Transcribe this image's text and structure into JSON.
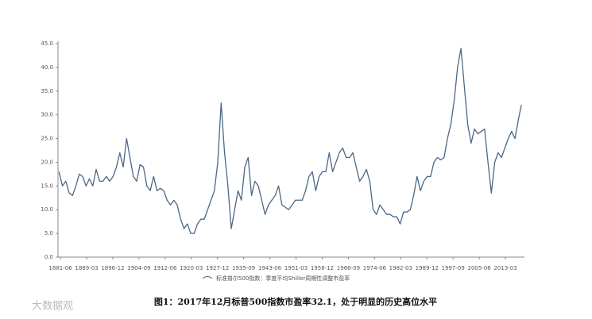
{
  "chart_data": {
    "type": "line",
    "x": [
      1881,
      1882,
      1883,
      1884,
      1885,
      1886,
      1887,
      1888,
      1889,
      1890,
      1891,
      1892,
      1893,
      1894,
      1895,
      1896,
      1897,
      1898,
      1899,
      1900,
      1901,
      1902,
      1903,
      1904,
      1905,
      1906,
      1907,
      1908,
      1909,
      1910,
      1911,
      1912,
      1913,
      1914,
      1915,
      1916,
      1917,
      1918,
      1919,
      1920,
      1921,
      1922,
      1923,
      1924,
      1925,
      1926,
      1927,
      1928,
      1929,
      1930,
      1931,
      1932,
      1933,
      1934,
      1935,
      1936,
      1937,
      1938,
      1939,
      1940,
      1941,
      1942,
      1943,
      1944,
      1945,
      1946,
      1947,
      1948,
      1949,
      1950,
      1951,
      1952,
      1953,
      1954,
      1955,
      1956,
      1957,
      1958,
      1959,
      1960,
      1961,
      1962,
      1963,
      1964,
      1965,
      1966,
      1967,
      1968,
      1969,
      1970,
      1971,
      1972,
      1973,
      1974,
      1975,
      1976,
      1977,
      1978,
      1979,
      1980,
      1981,
      1982,
      1983,
      1984,
      1985,
      1986,
      1987,
      1988,
      1989,
      1990,
      1991,
      1992,
      1993,
      1994,
      1995,
      1996,
      1997,
      1998,
      1999,
      2000,
      2001,
      2002,
      2003,
      2004,
      2005,
      2006,
      2007,
      2008,
      2009,
      2010,
      2011,
      2012,
      2013,
      2014,
      2015,
      2016,
      2017,
      2017.9
    ],
    "series": [
      {
        "name": "标准普尔500指数：季度平均Shiller周期性调整市盈率",
        "color": "#4b6786",
        "values": [
          18,
          15,
          16,
          13.5,
          13,
          15,
          17.5,
          17,
          15,
          16.5,
          15,
          18.5,
          16,
          16,
          17,
          16,
          17,
          19,
          22,
          19,
          25,
          21,
          17,
          16,
          19.5,
          19,
          15,
          14,
          17,
          14,
          14.5,
          14,
          12,
          11,
          12,
          11,
          8,
          6,
          7,
          5,
          5,
          7,
          8,
          8,
          10,
          12,
          14,
          20,
          32.5,
          22,
          15,
          6,
          10,
          14,
          12,
          19,
          21,
          13,
          16,
          15,
          12,
          9,
          11,
          12,
          13,
          15,
          11,
          10.5,
          10,
          11,
          12,
          12,
          12,
          14,
          17,
          18,
          14,
          17,
          18,
          18,
          22,
          18,
          20,
          22,
          23,
          21,
          21,
          22,
          19,
          16,
          17,
          18.5,
          16,
          10,
          9,
          11,
          10,
          9,
          9,
          8.5,
          8.5,
          7,
          9.5,
          9.5,
          10,
          13,
          17,
          14,
          16,
          17,
          17,
          20,
          21,
          20.5,
          21,
          25,
          28,
          33,
          40,
          44,
          36,
          28,
          24,
          27,
          26,
          26.5,
          27,
          20,
          13.5,
          20,
          22,
          21,
          23,
          25,
          26.5,
          25,
          29,
          32.1
        ]
      }
    ],
    "xlim": [
      1880.7,
      2018.8
    ],
    "xticks": [
      {
        "value": 1881.42,
        "label": "1881-06"
      },
      {
        "value": 1889.17,
        "label": "1889-03"
      },
      {
        "value": 1896.92,
        "label": "1896-12"
      },
      {
        "value": 1904.67,
        "label": "1904-09"
      },
      {
        "value": 1912.42,
        "label": "1912-06"
      },
      {
        "value": 1920.17,
        "label": "1920-03"
      },
      {
        "value": 1927.92,
        "label": "1927-12"
      },
      {
        "value": 1935.67,
        "label": "1935-09"
      },
      {
        "value": 1943.42,
        "label": "1943-06"
      },
      {
        "value": 1951.17,
        "label": "1951-03"
      },
      {
        "value": 1958.92,
        "label": "1958-12"
      },
      {
        "value": 1966.67,
        "label": "1966-09"
      },
      {
        "value": 1974.42,
        "label": "1974-06"
      },
      {
        "value": 1982.17,
        "label": "1982-03"
      },
      {
        "value": 1989.92,
        "label": "1989-12"
      },
      {
        "value": 1997.67,
        "label": "1997-09"
      },
      {
        "value": 2005.42,
        "label": "2005-06"
      },
      {
        "value": 2013.17,
        "label": "2013-03"
      }
    ],
    "ylim": [
      0,
      45
    ],
    "yticks": [
      {
        "value": 0,
        "label": "0.0"
      },
      {
        "value": 5,
        "label": "5.0"
      },
      {
        "value": 10,
        "label": "10.0"
      },
      {
        "value": 15,
        "label": "15.0"
      },
      {
        "value": 20,
        "label": "20.0"
      },
      {
        "value": 25,
        "label": "25.0"
      },
      {
        "value": 30,
        "label": "30.0"
      },
      {
        "value": 35,
        "label": "35.0"
      },
      {
        "value": 40,
        "label": "40.0"
      },
      {
        "value": 45,
        "label": "45.0"
      }
    ],
    "caption": "图1：2017年12月标普500指数市盈率32.1，处于明显的历史高位水平",
    "watermark": "大数据观"
  }
}
